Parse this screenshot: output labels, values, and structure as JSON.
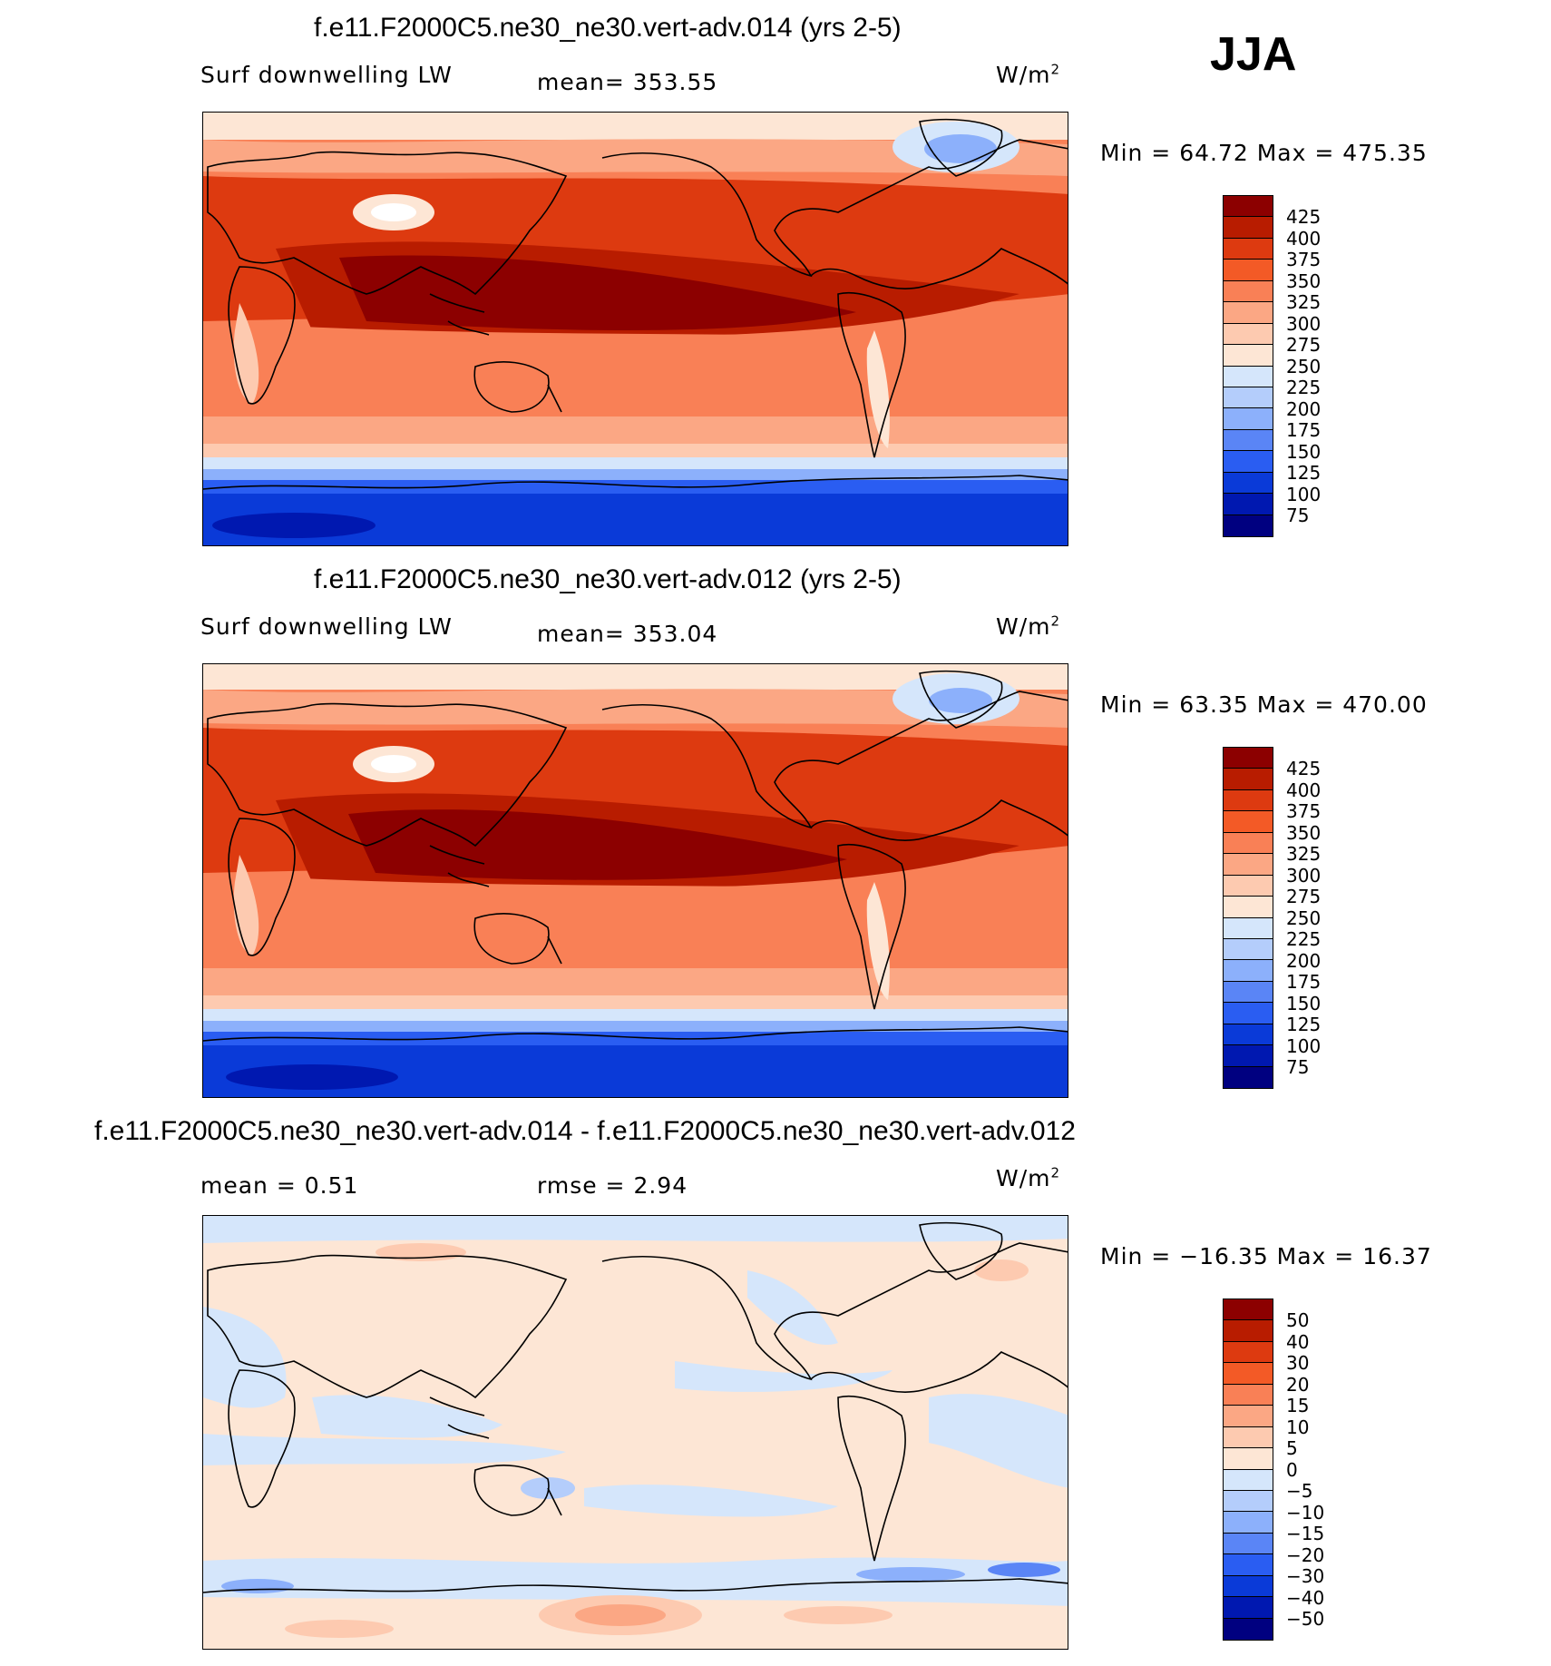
{
  "season": "JJA",
  "units": "W/m",
  "units_exp": "2",
  "panels": [
    {
      "title": "f.e11.F2000C5.ne30_ne30.vert-adv.014 (yrs 2-5)",
      "left_label": "Surf downwelling LW",
      "stat_text": "mean= 353.55",
      "minmax_text": "Min =   64.72 Max = 475.35",
      "colorbar_labels": [
        "425",
        "400",
        "375",
        "350",
        "325",
        "300",
        "275",
        "250",
        "225",
        "200",
        "175",
        "150",
        "125",
        "100",
        "75"
      ]
    },
    {
      "title": "f.e11.F2000C5.ne30_ne30.vert-adv.012 (yrs 2-5)",
      "left_label": "Surf downwelling LW",
      "stat_text": "mean= 353.04",
      "minmax_text": "Min =   63.35 Max = 470.00",
      "colorbar_labels": [
        "425",
        "400",
        "375",
        "350",
        "325",
        "300",
        "275",
        "250",
        "225",
        "200",
        "175",
        "150",
        "125",
        "100",
        "75"
      ]
    },
    {
      "title": "f.e11.F2000C5.ne30_ne30.vert-adv.014 - f.e11.F2000C5.ne30_ne30.vert-adv.012",
      "left_label": "mean =    0.51",
      "stat_text": "rmse =    2.94",
      "minmax_text": "Min = −16.35 Max =   16.37",
      "colorbar_labels": [
        "50",
        "40",
        "30",
        "20",
        "15",
        "10",
        "5",
        "0",
        "−5",
        "−10",
        "−15",
        "−20",
        "−30",
        "−40",
        "−50"
      ]
    }
  ],
  "colors": {
    "field_scale": [
      "#8c0000",
      "#b81c00",
      "#dd3a10",
      "#f35a26",
      "#f98056",
      "#fba784",
      "#fdcab0",
      "#fde6d5",
      "#d5e6fb",
      "#b4cdfb",
      "#8cb0fb",
      "#5a85f6",
      "#2a5df2",
      "#0a3ad8",
      "#0018b0",
      "#000080"
    ],
    "diff_scale": [
      "#8c0000",
      "#b81c00",
      "#dd3a10",
      "#f35a26",
      "#f98056",
      "#fba784",
      "#fdcab0",
      "#fde6d5",
      "#d5e6fb",
      "#b4cdfb",
      "#8cb0fb",
      "#5a85f6",
      "#2a5df2",
      "#0a3ad8",
      "#0018b0",
      "#000080"
    ]
  }
}
